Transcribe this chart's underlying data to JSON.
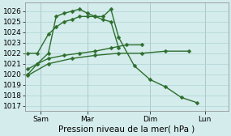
{
  "bg_color": "#d4ecec",
  "grid_color": "#aed4d4",
  "line_color": "#2d6e2d",
  "marker": "D",
  "markersize": 2.5,
  "linewidth": 1.0,
  "xlabel": "Pression niveau de la mer( hPa )",
  "ylim": [
    1016.5,
    1026.8
  ],
  "yticks": [
    1017,
    1018,
    1019,
    1020,
    1021,
    1022,
    1023,
    1024,
    1025,
    1026
  ],
  "xtick_labels": [
    "Sam",
    "Mar",
    "Dim",
    "Lun"
  ],
  "xtick_positions": [
    1,
    4,
    8,
    11.5
  ],
  "xlim": [
    0,
    13
  ],
  "label_fontsize": 7.5,
  "tick_fontsize": 6.5,
  "s1_x": [
    0.2,
    0.8,
    1.5,
    2.0,
    2.5,
    3.0,
    3.5,
    4.0,
    4.5,
    5.0,
    5.5,
    6.0,
    7.0,
    8.0,
    9.0,
    10.0,
    11.0,
    12.0
  ],
  "s1_y": [
    1020.0,
    1021.0,
    1022.0,
    1025.5,
    1025.8,
    1026.0,
    1026.2,
    1025.8,
    1025.5,
    1025.5,
    1026.2,
    1023.5,
    1020.8,
    1019.5,
    1018.8,
    1017.8,
    1017.3,
    null
  ],
  "s2_x": [
    0.2,
    0.8,
    1.5,
    2.0,
    2.5,
    3.0,
    3.5,
    4.0,
    4.5,
    5.0,
    5.5,
    6.0,
    7.0
  ],
  "s2_y": [
    1022.0,
    1022.0,
    1023.8,
    1024.5,
    1025.0,
    1025.2,
    1025.5,
    1025.5,
    1025.5,
    1025.2,
    1025.0,
    1022.5,
    null
  ],
  "s3_x": [
    0.2,
    0.8,
    1.5,
    2.5,
    3.5,
    4.5,
    5.5,
    6.5,
    7.5,
    8.0
  ],
  "s3_y": [
    1020.5,
    1021.0,
    1021.5,
    1021.8,
    1022.0,
    1022.2,
    1022.5,
    1022.8,
    1022.8,
    null
  ],
  "s4_x": [
    0.2,
    1.5,
    3.0,
    4.5,
    6.0,
    7.5,
    9.0,
    10.5,
    12.0
  ],
  "s4_y": [
    1019.9,
    1021.0,
    1021.5,
    1021.8,
    1022.0,
    1022.0,
    1022.2,
    1022.2,
    null
  ]
}
